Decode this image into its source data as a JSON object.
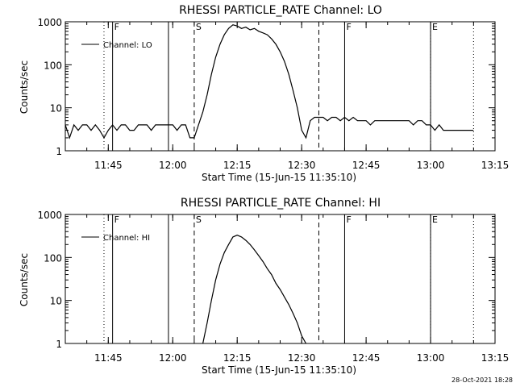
{
  "footer_text": "28-Oct-2021 18:28",
  "chart_data": [
    {
      "type": "line",
      "title": "RHESSI PARTICLE_RATE Channel: LO",
      "xlabel": "Start Time (15-Jun-15 11:35:10)",
      "ylabel": "Counts/sec",
      "y_scale": "log",
      "ylim": [
        1,
        1000
      ],
      "y_ticks": [
        1,
        10,
        100,
        1000
      ],
      "y_tick_labels": [
        "1",
        "10",
        "100",
        "1000"
      ],
      "xlim": [
        "11:35",
        "13:15"
      ],
      "x_ticks": [
        "11:45",
        "12:00",
        "12:15",
        "12:30",
        "12:45",
        "13:00",
        "13:15"
      ],
      "legend": {
        "placement": "top-left",
        "entries": [
          "Channel: LO"
        ]
      },
      "grid": false,
      "markers": [
        {
          "time": "11:46",
          "label": "F",
          "style": "solid"
        },
        {
          "time": "11:59",
          "label": "",
          "style": "solid"
        },
        {
          "time": "12:40",
          "label": "F",
          "style": "solid"
        },
        {
          "time": "13:00",
          "label": "",
          "style": "solid"
        },
        {
          "time": "11:44",
          "label": "",
          "style": "dotted"
        },
        {
          "time": "13:00",
          "label": "E",
          "style": "dotted"
        },
        {
          "time": "13:10",
          "label": "",
          "style": "dotted"
        },
        {
          "time": "12:05",
          "label": "S",
          "style": "dashed"
        },
        {
          "time": "12:34",
          "label": "",
          "style": "dashed"
        }
      ],
      "series": [
        {
          "name": "Channel: LO",
          "x": [
            "11:35",
            "11:36",
            "11:37",
            "11:38",
            "11:39",
            "11:40",
            "11:41",
            "11:42",
            "11:43",
            "11:44",
            "11:45",
            "11:46",
            "11:47",
            "11:48",
            "11:49",
            "11:50",
            "11:51",
            "11:52",
            "11:53",
            "11:54",
            "11:55",
            "11:56",
            "11:57",
            "11:58",
            "11:59",
            "12:00",
            "12:01",
            "12:02",
            "12:03",
            "12:04",
            "12:05",
            "12:06",
            "12:07",
            "12:08",
            "12:09",
            "12:10",
            "12:11",
            "12:12",
            "12:13",
            "12:14",
            "12:15",
            "12:16",
            "12:17",
            "12:18",
            "12:19",
            "12:20",
            "12:21",
            "12:22",
            "12:23",
            "12:24",
            "12:25",
            "12:26",
            "12:27",
            "12:28",
            "12:29",
            "12:30",
            "12:31",
            "12:32",
            "12:33",
            "12:34",
            "12:35",
            "12:36",
            "12:37",
            "12:38",
            "12:39",
            "12:40",
            "12:41",
            "12:42",
            "12:43",
            "12:44",
            "12:45",
            "12:46",
            "12:47",
            "12:48",
            "12:49",
            "12:50",
            "12:51",
            "12:52",
            "12:53",
            "12:54",
            "12:55",
            "12:56",
            "12:57",
            "12:58",
            "12:59",
            "13:00",
            "13:01",
            "13:02",
            "13:03",
            "13:04",
            "13:05",
            "13:06",
            "13:07",
            "13:08",
            "13:09",
            "13:10"
          ],
          "values": [
            4,
            2,
            4,
            3,
            4,
            4,
            3,
            4,
            3,
            2,
            3,
            4,
            3,
            4,
            4,
            3,
            3,
            4,
            4,
            4,
            3,
            4,
            4,
            4,
            4,
            4,
            3,
            4,
            4,
            2,
            2,
            4,
            8,
            20,
            60,
            150,
            300,
            500,
            700,
            850,
            800,
            700,
            750,
            650,
            700,
            600,
            550,
            500,
            400,
            300,
            200,
            120,
            60,
            25,
            10,
            3,
            2,
            5,
            6,
            6,
            6,
            5,
            6,
            6,
            5,
            6,
            5,
            6,
            5,
            5,
            5,
            4,
            5,
            5,
            5,
            5,
            5,
            5,
            5,
            5,
            5,
            4,
            5,
            5,
            4,
            4,
            3,
            4,
            3,
            3,
            3,
            3,
            3,
            3,
            3,
            3
          ]
        }
      ]
    },
    {
      "type": "line",
      "title": "RHESSI PARTICLE_RATE Channel: HI",
      "xlabel": "Start Time (15-Jun-15 11:35:10)",
      "ylabel": "Counts/sec",
      "y_scale": "log",
      "ylim": [
        1,
        1000
      ],
      "y_ticks": [
        1,
        10,
        100,
        1000
      ],
      "y_tick_labels": [
        "1",
        "10",
        "100",
        "1000"
      ],
      "xlim": [
        "11:35",
        "13:15"
      ],
      "x_ticks": [
        "11:45",
        "12:00",
        "12:15",
        "12:30",
        "12:45",
        "13:00",
        "13:15"
      ],
      "legend": {
        "placement": "top-left",
        "entries": [
          "Channel: HI"
        ]
      },
      "grid": false,
      "markers": [
        {
          "time": "11:46",
          "label": "F",
          "style": "solid"
        },
        {
          "time": "11:59",
          "label": "",
          "style": "solid"
        },
        {
          "time": "12:40",
          "label": "F",
          "style": "solid"
        },
        {
          "time": "13:00",
          "label": "",
          "style": "solid"
        },
        {
          "time": "11:44",
          "label": "",
          "style": "dotted"
        },
        {
          "time": "13:00",
          "label": "E",
          "style": "dotted"
        },
        {
          "time": "13:10",
          "label": "",
          "style": "dotted"
        },
        {
          "time": "12:05",
          "label": "S",
          "style": "dashed"
        },
        {
          "time": "12:34",
          "label": "",
          "style": "dashed"
        }
      ],
      "series": [
        {
          "name": "Channel: HI",
          "x": [
            "12:07",
            "12:08",
            "12:09",
            "12:10",
            "12:11",
            "12:12",
            "12:13",
            "12:14",
            "12:15",
            "12:16",
            "12:17",
            "12:18",
            "12:19",
            "12:20",
            "12:21",
            "12:22",
            "12:23",
            "12:24",
            "12:25",
            "12:26",
            "12:27",
            "12:28",
            "12:29",
            "12:30",
            "12:31"
          ],
          "values": [
            1,
            3,
            10,
            30,
            70,
            130,
            200,
            300,
            330,
            300,
            250,
            200,
            150,
            110,
            80,
            55,
            40,
            25,
            18,
            12,
            8,
            5,
            3,
            1.5,
            1
          ]
        }
      ]
    }
  ]
}
